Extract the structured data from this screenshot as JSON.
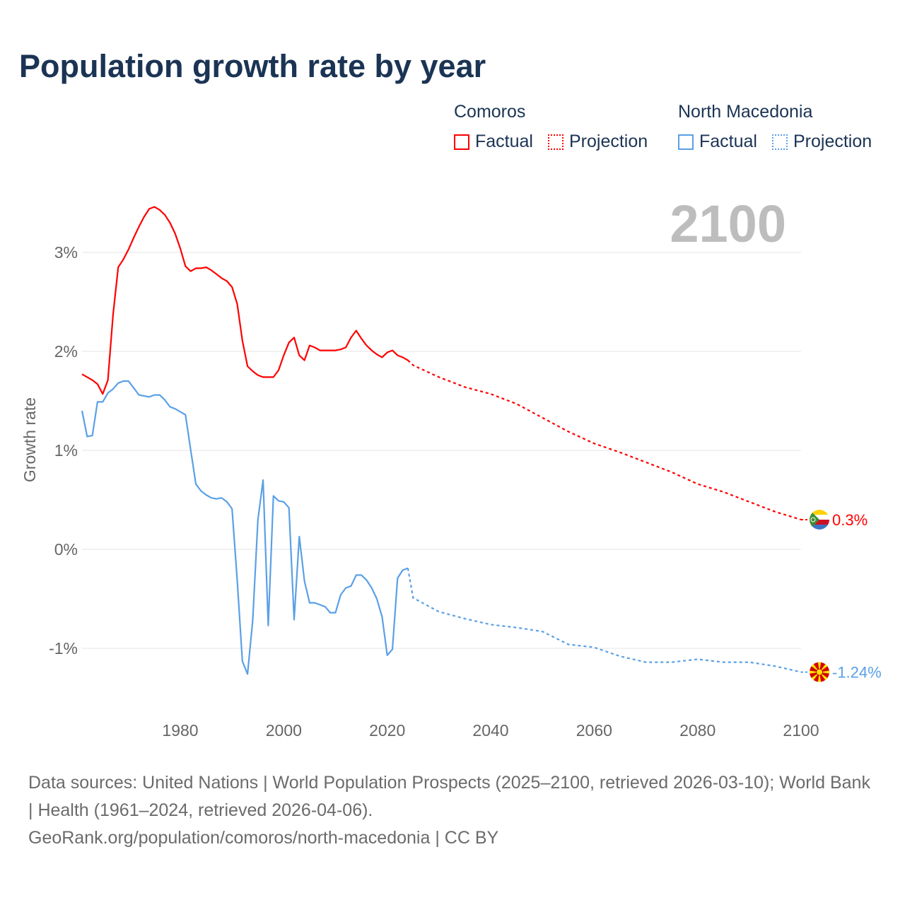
{
  "title": "Population growth rate by year",
  "legend": {
    "groups": [
      {
        "name": "Comoros",
        "color": "#ff0000",
        "factual": "Factual",
        "projection": "Projection"
      },
      {
        "name": "North Macedonia",
        "color": "#5aa0e6",
        "factual": "Factual",
        "projection": "Projection"
      }
    ]
  },
  "year_watermark": "2100",
  "source": {
    "line1": "Data sources: United Nations | World Population Prospects (2025–2100, retrieved 2026-03-10); World Bank | Health (1961–2024, retrieved 2026-04-06).",
    "line2": "GeoRank.org/population/comoros/north-macedonia | CC BY"
  },
  "chart_data": {
    "type": "line",
    "title": "Population growth rate by year",
    "xlabel": "",
    "ylabel": "Growth rate",
    "xlim": [
      1961,
      2100
    ],
    "ylim": [
      -1.65,
      3.6
    ],
    "x_ticks": [
      1980,
      2000,
      2020,
      2040,
      2060,
      2080,
      2100
    ],
    "y_ticks": [
      {
        "v": 3,
        "label": "3%"
      },
      {
        "v": 2,
        "label": "2%"
      },
      {
        "v": 1,
        "label": "1%"
      },
      {
        "v": 0,
        "label": "0%"
      },
      {
        "v": -1,
        "label": "-1%"
      }
    ],
    "grid": true,
    "series": [
      {
        "name": "Comoros",
        "color": "#ff0000",
        "end_label": "0.3%",
        "factual": {
          "x": [
            1961,
            1962,
            1963,
            1964,
            1965,
            1966,
            1967,
            1968,
            1969,
            1970,
            1971,
            1972,
            1973,
            1974,
            1975,
            1976,
            1977,
            1978,
            1979,
            1980,
            1981,
            1982,
            1983,
            1984,
            1985,
            1986,
            1987,
            1988,
            1989,
            1990,
            1991,
            1992,
            1993,
            1994,
            1995,
            1996,
            1997,
            1998,
            1999,
            2000,
            2001,
            2002,
            2003,
            2004,
            2005,
            2006,
            2007,
            2008,
            2009,
            2010,
            2011,
            2012,
            2013,
            2014,
            2015,
            2016,
            2017,
            2018,
            2019,
            2020,
            2021,
            2022,
            2023,
            2024
          ],
          "y": [
            1.77,
            1.74,
            1.71,
            1.67,
            1.57,
            1.71,
            2.37,
            2.85,
            2.93,
            3.03,
            3.15,
            3.26,
            3.36,
            3.44,
            3.46,
            3.43,
            3.38,
            3.3,
            3.19,
            3.04,
            2.86,
            2.81,
            2.84,
            2.84,
            2.85,
            2.82,
            2.78,
            2.74,
            2.71,
            2.65,
            2.48,
            2.11,
            1.85,
            1.8,
            1.76,
            1.74,
            1.74,
            1.74,
            1.81,
            1.96,
            2.09,
            2.14,
            1.96,
            1.91,
            2.06,
            2.04,
            2.01,
            2.01,
            2.01,
            2.01,
            2.02,
            2.04,
            2.14,
            2.21,
            2.13,
            2.06,
            2.01,
            1.97,
            1.94,
            1.99,
            2.01,
            1.96,
            1.94,
            1.91
          ]
        },
        "projection": {
          "x": [
            2024,
            2025,
            2030,
            2035,
            2040,
            2045,
            2050,
            2055,
            2060,
            2065,
            2070,
            2075,
            2080,
            2085,
            2090,
            2095,
            2100
          ],
          "y": [
            1.91,
            1.86,
            1.74,
            1.64,
            1.57,
            1.47,
            1.33,
            1.19,
            1.07,
            0.98,
            0.88,
            0.78,
            0.66,
            0.58,
            0.48,
            0.38,
            0.3
          ]
        }
      },
      {
        "name": "North Macedonia",
        "color": "#5aa0e6",
        "end_label": "-1.24%",
        "factual": {
          "x": [
            1961,
            1962,
            1963,
            1964,
            1965,
            1966,
            1967,
            1968,
            1969,
            1970,
            1971,
            1972,
            1973,
            1974,
            1975,
            1976,
            1977,
            1978,
            1979,
            1980,
            1981,
            1982,
            1983,
            1984,
            1985,
            1986,
            1987,
            1988,
            1989,
            1990,
            1991,
            1992,
            1993,
            1994,
            1995,
            1996,
            1997,
            1998,
            1999,
            2000,
            2001,
            2002,
            2003,
            2004,
            2005,
            2006,
            2007,
            2008,
            2009,
            2010,
            2011,
            2012,
            2013,
            2014,
            2015,
            2016,
            2017,
            2018,
            2019,
            2020,
            2021,
            2022,
            2023,
            2024
          ],
          "y": [
            1.4,
            1.14,
            1.15,
            1.49,
            1.49,
            1.58,
            1.62,
            1.68,
            1.7,
            1.7,
            1.63,
            1.56,
            1.55,
            1.54,
            1.56,
            1.56,
            1.51,
            1.44,
            1.42,
            1.39,
            1.36,
            1.01,
            0.66,
            0.59,
            0.55,
            0.52,
            0.51,
            0.52,
            0.48,
            0.41,
            -0.31,
            -1.13,
            -1.26,
            -0.72,
            0.3,
            0.7,
            -0.77,
            0.54,
            0.49,
            0.48,
            0.42,
            -0.71,
            0.13,
            -0.32,
            -0.54,
            -0.54,
            -0.56,
            -0.58,
            -0.64,
            -0.64,
            -0.46,
            -0.39,
            -0.37,
            -0.26,
            -0.26,
            -0.31,
            -0.39,
            -0.5,
            -0.68,
            -1.07,
            -1.01,
            -0.29,
            -0.21,
            -0.19
          ]
        },
        "projection": {
          "x": [
            2024,
            2025,
            2030,
            2035,
            2040,
            2045,
            2050,
            2055,
            2060,
            2065,
            2070,
            2075,
            2080,
            2085,
            2090,
            2095,
            2100
          ],
          "y": [
            -0.19,
            -0.49,
            -0.63,
            -0.7,
            -0.76,
            -0.79,
            -0.83,
            -0.96,
            -0.99,
            -1.08,
            -1.14,
            -1.14,
            -1.11,
            -1.14,
            -1.14,
            -1.18,
            -1.24
          ]
        }
      }
    ]
  }
}
